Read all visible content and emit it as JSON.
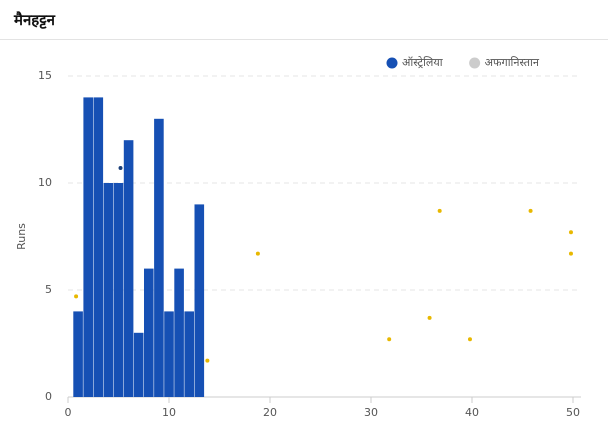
{
  "chart_data": {
    "type": "bar",
    "title": "मैनहट्टन",
    "y_label": "Runs",
    "xlim": [
      0,
      50
    ],
    "xticks": [
      0,
      10,
      20,
      30,
      40,
      50
    ],
    "ylim": [
      0,
      15
    ],
    "yticks": [
      0,
      5,
      10,
      15
    ],
    "grid": true,
    "series": [
      {
        "name": "ऑस्ट्रेलिया",
        "color": "#1650b4",
        "x": [
          1,
          2,
          3,
          4,
          5,
          6,
          7,
          8,
          9,
          10,
          11,
          12,
          13
        ],
        "values": [
          4,
          14,
          14,
          10,
          10,
          12,
          3,
          6,
          13,
          4,
          6,
          4,
          9
        ],
        "wickets": {
          "color": "#1a3f7a",
          "x": [
            5.2
          ],
          "y": [
            10.7
          ]
        }
      },
      {
        "name": "अफगानिस्तान",
        "color": "#cccccc",
        "hidden": true,
        "x": [],
        "values": [],
        "wickets": {
          "color": "#e8b800",
          "x": [
            0.8,
            13.8,
            18.8,
            31.8,
            35.8,
            36.8,
            39.8,
            45.8,
            49.8,
            49.8
          ],
          "y": [
            4.7,
            1.7,
            6.7,
            2.7,
            3.7,
            8.7,
            2.7,
            8.7,
            7.7,
            6.7
          ]
        }
      }
    ]
  }
}
